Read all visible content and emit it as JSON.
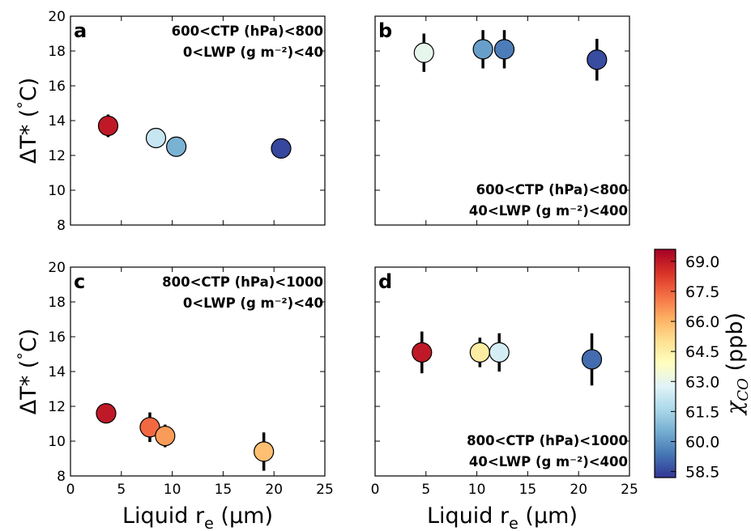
{
  "chart_data": [
    {
      "type": "scatter",
      "panel_label": "a",
      "annotation": [
        "600<CTP (hPa)<800",
        "0<LWP (g m⁻²)<40"
      ],
      "annotation_loc": "upper right",
      "ylabel": [
        "ΔT* (",
        "°",
        "C)"
      ],
      "show_xticklabels": false,
      "show_yticklabels": true,
      "x": [
        3.7,
        8.4,
        10.4,
        20.7
      ],
      "y": [
        13.7,
        13.0,
        12.5,
        12.4
      ],
      "yerr": [
        0.65,
        0.3,
        0.5,
        0.55
      ],
      "c": [
        69.0,
        62.2,
        60.6,
        58.5
      ],
      "xlim": [
        0,
        25
      ],
      "ylim": [
        8,
        20
      ],
      "xticks": [
        0,
        5,
        10,
        15,
        20,
        25
      ],
      "yticks": [
        8,
        10,
        12,
        14,
        16,
        18,
        20
      ]
    },
    {
      "type": "scatter",
      "panel_label": "b",
      "annotation": [
        "600<CTP (hPa)<800",
        "40<LWP (g m⁻²)<400"
      ],
      "annotation_loc": "lower right",
      "show_xticklabels": false,
      "show_yticklabels": false,
      "x": [
        4.8,
        10.6,
        12.7,
        21.8
      ],
      "y": [
        17.9,
        18.1,
        18.1,
        17.5
      ],
      "yerr": [
        1.1,
        1.1,
        1.1,
        1.2
      ],
      "c": [
        63.0,
        60.2,
        59.5,
        58.6
      ],
      "xlim": [
        0,
        25
      ],
      "ylim": [
        8,
        20
      ],
      "xticks": [
        0,
        5,
        10,
        15,
        20,
        25
      ],
      "yticks": [
        8,
        10,
        12,
        14,
        16,
        18,
        20
      ]
    },
    {
      "type": "scatter",
      "panel_label": "c",
      "annotation": [
        "800<CTP (hPa)<1000",
        "0<LWP (g m⁻²)<40"
      ],
      "annotation_loc": "upper right",
      "ylabel": [
        "ΔT* (",
        "°",
        "C)"
      ],
      "xlabel": [
        "Liquid r",
        "e",
        " (μm)"
      ],
      "show_xticklabels": true,
      "show_yticklabels": true,
      "x": [
        3.5,
        7.8,
        9.3,
        19.0
      ],
      "y": [
        11.6,
        10.8,
        10.3,
        9.4
      ],
      "yerr": [
        0.55,
        0.85,
        0.65,
        1.1
      ],
      "c": [
        69.0,
        67.4,
        66.5,
        65.8
      ],
      "xlim": [
        0,
        25
      ],
      "ylim": [
        8,
        20
      ],
      "xticks": [
        0,
        5,
        10,
        15,
        20,
        25
      ],
      "yticks": [
        8,
        10,
        12,
        14,
        16,
        18,
        20
      ]
    },
    {
      "type": "scatter",
      "panel_label": "d",
      "annotation": [
        "800<CTP (hPa)<1000",
        "40<LWP (g m⁻²)<400"
      ],
      "annotation_loc": "lower right",
      "xlabel": [
        "Liquid r",
        "e",
        " (μm)"
      ],
      "show_xticklabels": true,
      "show_yticklabels": false,
      "x": [
        4.6,
        10.3,
        12.2,
        21.3
      ],
      "y": [
        15.1,
        15.1,
        15.1,
        14.7
      ],
      "yerr": [
        1.2,
        0.85,
        1.1,
        1.5
      ],
      "c": [
        69.0,
        64.6,
        62.5,
        59.2
      ],
      "xlim": [
        0,
        25
      ],
      "ylim": [
        8,
        20
      ],
      "xticks": [
        0,
        5,
        10,
        15,
        20,
        25
      ],
      "yticks": [
        8,
        10,
        12,
        14,
        16,
        18,
        20
      ]
    }
  ],
  "colorbar": {
    "label": [
      "χ",
      "CO",
      " (ppb)"
    ],
    "clim": [
      58.2,
      69.6
    ],
    "colormap": [
      "#313695",
      "#4575b4",
      "#74add1",
      "#abd9e9",
      "#e0f3f8",
      "#ffffbf",
      "#fee090",
      "#fdae61",
      "#f46d43",
      "#d73027",
      "#a50026"
    ],
    "ticks": [
      58.5,
      {
        "value": 60,
        "label": "60.0"
      },
      61.5,
      {
        "value": 63,
        "label": "63.0"
      },
      64.5,
      {
        "value": 66,
        "label": "66.0"
      },
      67.5,
      {
        "value": 69,
        "label": "69.0"
      }
    ]
  }
}
